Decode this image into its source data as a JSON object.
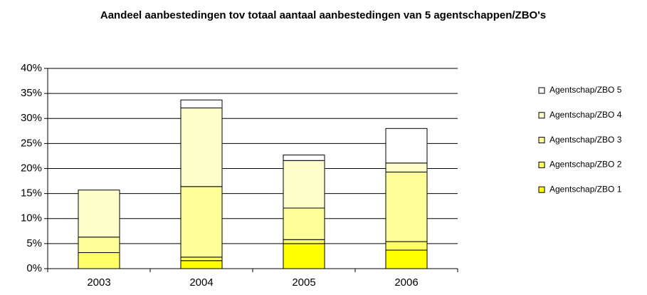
{
  "chart_data": {
    "type": "bar",
    "stacked": true,
    "title": "Aandeel aanbestedingen tov totaal aantaal aanbestedingen van 5 agentschappen/ZBO's",
    "categories": [
      "2003",
      "2004",
      "2005",
      "2006"
    ],
    "series": [
      {
        "name": "Agentschap/ZBO 1",
        "color": "#ffff00",
        "values": [
          0,
          1.6,
          5.0,
          3.7
        ]
      },
      {
        "name": "Agentschap/ZBO 2",
        "color": "#ffff66",
        "values": [
          3.2,
          0.7,
          0.8,
          1.7
        ]
      },
      {
        "name": "Agentschap/ZBO 3",
        "color": "#ffff99",
        "values": [
          3.1,
          14.1,
          6.3,
          13.9
        ]
      },
      {
        "name": "Agentschap/ZBO 4",
        "color": "#ffffcc",
        "values": [
          9.4,
          15.7,
          9.5,
          1.8
        ]
      },
      {
        "name": "Agentschap/ZBO 5",
        "color": "#ffffff",
        "values": [
          0,
          1.6,
          1.1,
          6.9
        ]
      }
    ],
    "ylim": [
      0,
      40
    ],
    "yticks": [
      {
        "value": 0,
        "label": "0%"
      },
      {
        "value": 5,
        "label": "5%"
      },
      {
        "value": 10,
        "label": "10%"
      },
      {
        "value": 15,
        "label": "15%"
      },
      {
        "value": 20,
        "label": "20%"
      },
      {
        "value": 25,
        "label": "25%"
      },
      {
        "value": 30,
        "label": "30%"
      },
      {
        "value": 35,
        "label": "35%"
      },
      {
        "value": 40,
        "label": "40%"
      }
    ],
    "grid": true,
    "legend": "right"
  }
}
